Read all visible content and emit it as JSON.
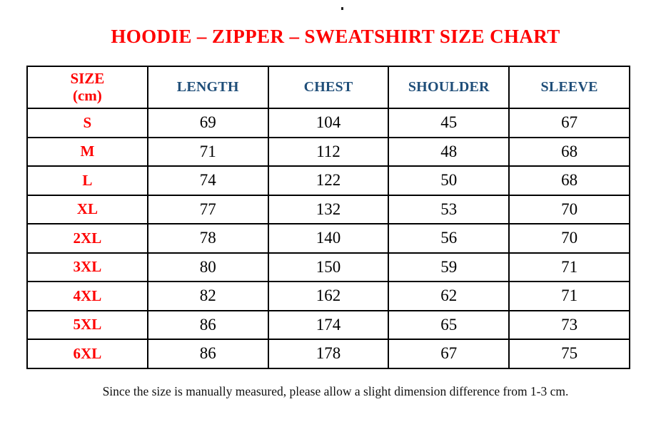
{
  "title": "HOODIE – ZIPPER – SWEATSHIRT SIZE CHART",
  "table": {
    "size_header": {
      "line1": "SIZE",
      "line2": "(cm)"
    },
    "measure_headers": [
      "LENGTH",
      "CHEST",
      "SHOULDER",
      "SLEEVE"
    ],
    "rows": [
      {
        "size": "S",
        "values": [
          "69",
          "104",
          "45",
          "67"
        ]
      },
      {
        "size": "M",
        "values": [
          "71",
          "112",
          "48",
          "68"
        ]
      },
      {
        "size": "L",
        "values": [
          "74",
          "122",
          "50",
          "68"
        ]
      },
      {
        "size": "XL",
        "values": [
          "77",
          "132",
          "53",
          "70"
        ]
      },
      {
        "size": "2XL",
        "values": [
          "78",
          "140",
          "56",
          "70"
        ]
      },
      {
        "size": "3XL",
        "values": [
          "80",
          "150",
          "59",
          "71"
        ]
      },
      {
        "size": "4XL",
        "values": [
          "82",
          "162",
          "62",
          "71"
        ]
      },
      {
        "size": "5XL",
        "values": [
          "86",
          "174",
          "65",
          "73"
        ]
      },
      {
        "size": "6XL",
        "values": [
          "86",
          "178",
          "67",
          "75"
        ]
      }
    ]
  },
  "footer_note": "Since the size is manually measured, please allow a slight dimension difference from 1-3 cm.",
  "colors": {
    "title_red": "#fe0000",
    "header_blue": "#1f4e79",
    "text_black": "#000000",
    "border_black": "#000000"
  }
}
